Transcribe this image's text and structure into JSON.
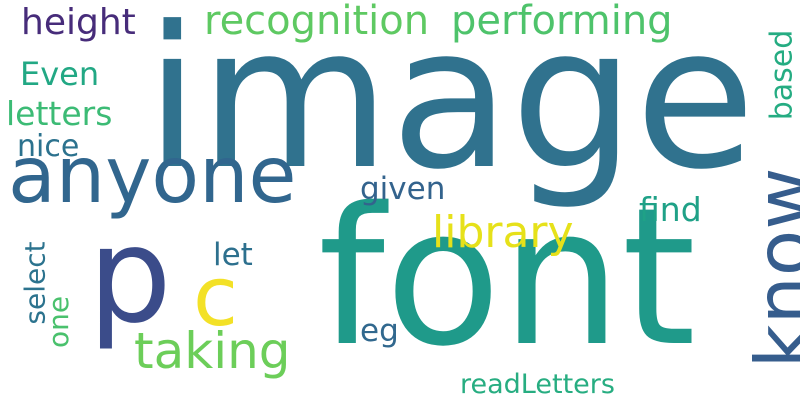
{
  "words": [
    {
      "id": "image",
      "text": "image",
      "color": "#30728e"
    },
    {
      "id": "font",
      "text": "font",
      "color": "#1f9a8a"
    },
    {
      "id": "p",
      "text": "p",
      "color": "#3b4c8a"
    },
    {
      "id": "anyone",
      "text": "anyone",
      "color": "#31668e"
    },
    {
      "id": "know",
      "text": "know",
      "color": "#365d8d"
    },
    {
      "id": "c",
      "text": "c",
      "color": "#f3e127"
    },
    {
      "id": "library",
      "text": "library",
      "color": "#e6e11a"
    },
    {
      "id": "taking",
      "text": "taking",
      "color": "#6cce59"
    },
    {
      "id": "performing",
      "text": "performing",
      "color": "#4ec36b"
    },
    {
      "id": "recognition",
      "text": "recognition",
      "color": "#5ec962"
    },
    {
      "id": "height",
      "text": "height",
      "color": "#472c7a"
    },
    {
      "id": "letters",
      "text": "letters",
      "color": "#3cbb75"
    },
    {
      "id": "even",
      "text": "Even",
      "color": "#22a884"
    },
    {
      "id": "nice",
      "text": "nice",
      "color": "#2c728e"
    },
    {
      "id": "given",
      "text": "given",
      "color": "#33638d"
    },
    {
      "id": "find",
      "text": "find",
      "color": "#1fa187"
    },
    {
      "id": "let",
      "text": "let",
      "color": "#2d708e"
    },
    {
      "id": "based",
      "text": "based",
      "color": "#25ac82"
    },
    {
      "id": "select",
      "text": "select",
      "color": "#2c738e"
    },
    {
      "id": "one",
      "text": "one",
      "color": "#4ac16d"
    },
    {
      "id": "eg",
      "text": "eg",
      "color": "#31688e"
    },
    {
      "id": "readletters",
      "text": "readLetters",
      "color": "#27ad81"
    }
  ],
  "vertical_words": [
    "know",
    "based",
    "select",
    "one"
  ]
}
